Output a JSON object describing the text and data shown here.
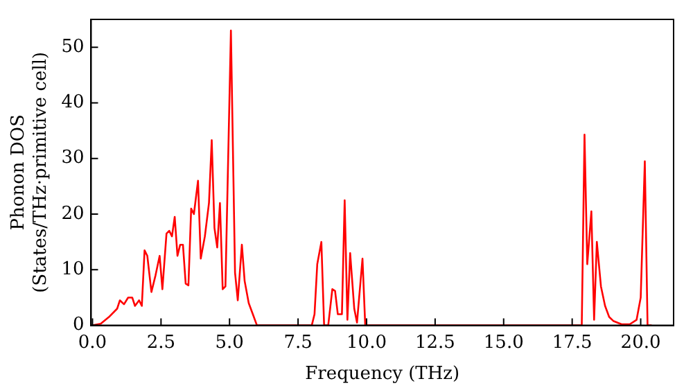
{
  "chart_data": {
    "type": "line",
    "xlabel": "Frequency (THz)",
    "ylabel": "Phonon DOS\n(States/THz·primitive cell)",
    "x": [
      0,
      0.3,
      0.6,
      0.9,
      1.0,
      1.15,
      1.3,
      1.45,
      1.55,
      1.7,
      1.8,
      1.9,
      2.0,
      2.15,
      2.3,
      2.45,
      2.55,
      2.7,
      2.8,
      2.9,
      3.0,
      3.1,
      3.2,
      3.3,
      3.4,
      3.5,
      3.6,
      3.7,
      3.85,
      3.95,
      4.1,
      4.25,
      4.35,
      4.45,
      4.55,
      4.65,
      4.75,
      4.85,
      5.05,
      5.2,
      5.3,
      5.45,
      5.55,
      5.7,
      5.85,
      6.0,
      8.0,
      8.1,
      8.2,
      8.35,
      8.45,
      8.6,
      8.75,
      8.85,
      8.95,
      9.1,
      9.2,
      9.3,
      9.4,
      9.55,
      9.65,
      9.85,
      9.95,
      17.85,
      17.95,
      18.05,
      18.2,
      18.3,
      18.4,
      18.55,
      18.7,
      18.85,
      19.0,
      19.3,
      19.6,
      19.85,
      20.0,
      20.15,
      20.25,
      20.4
    ],
    "series": [
      {
        "color": "#ff0000",
        "values": [
          0,
          0.3,
          1.5,
          3,
          4.5,
          3.8,
          5,
          5,
          3.5,
          4.5,
          3.5,
          13.5,
          12.5,
          6,
          9,
          12.5,
          6.5,
          16.5,
          17,
          16,
          19.5,
          12.5,
          14.5,
          14.5,
          7.5,
          7.2,
          21,
          20,
          26,
          12,
          16,
          22,
          33.3,
          17.5,
          14,
          22,
          6.5,
          7,
          53,
          9.5,
          4.5,
          14.5,
          8,
          4,
          2,
          0,
          0,
          2,
          11,
          15,
          0,
          0,
          6.5,
          6.2,
          2,
          2,
          22.5,
          1,
          13,
          3,
          0.5,
          12,
          0,
          0,
          34.3,
          11,
          20.5,
          1,
          15,
          7,
          3.5,
          1.5,
          0.8,
          0.2,
          0.2,
          1,
          5,
          29.5,
          0,
          0
        ]
      }
    ],
    "xlim": [
      -0.05,
      21.2
    ],
    "ylim": [
      0,
      55
    ],
    "xticks": [
      {
        "value": 0,
        "label": "0.0"
      },
      {
        "value": 2.5,
        "label": "2.5"
      },
      {
        "value": 5,
        "label": "5.0"
      },
      {
        "value": 7.5,
        "label": "7.5"
      },
      {
        "value": 10,
        "label": "10.0"
      },
      {
        "value": 12.5,
        "label": "12.5"
      },
      {
        "value": 15,
        "label": "15.0"
      },
      {
        "value": 17.5,
        "label": "17.5"
      },
      {
        "value": 20,
        "label": "20.0"
      }
    ],
    "yticks": [
      0,
      10,
      20,
      30,
      40,
      50
    ],
    "grid": false,
    "legend": false,
    "marker": "none",
    "line_style": "solid"
  }
}
